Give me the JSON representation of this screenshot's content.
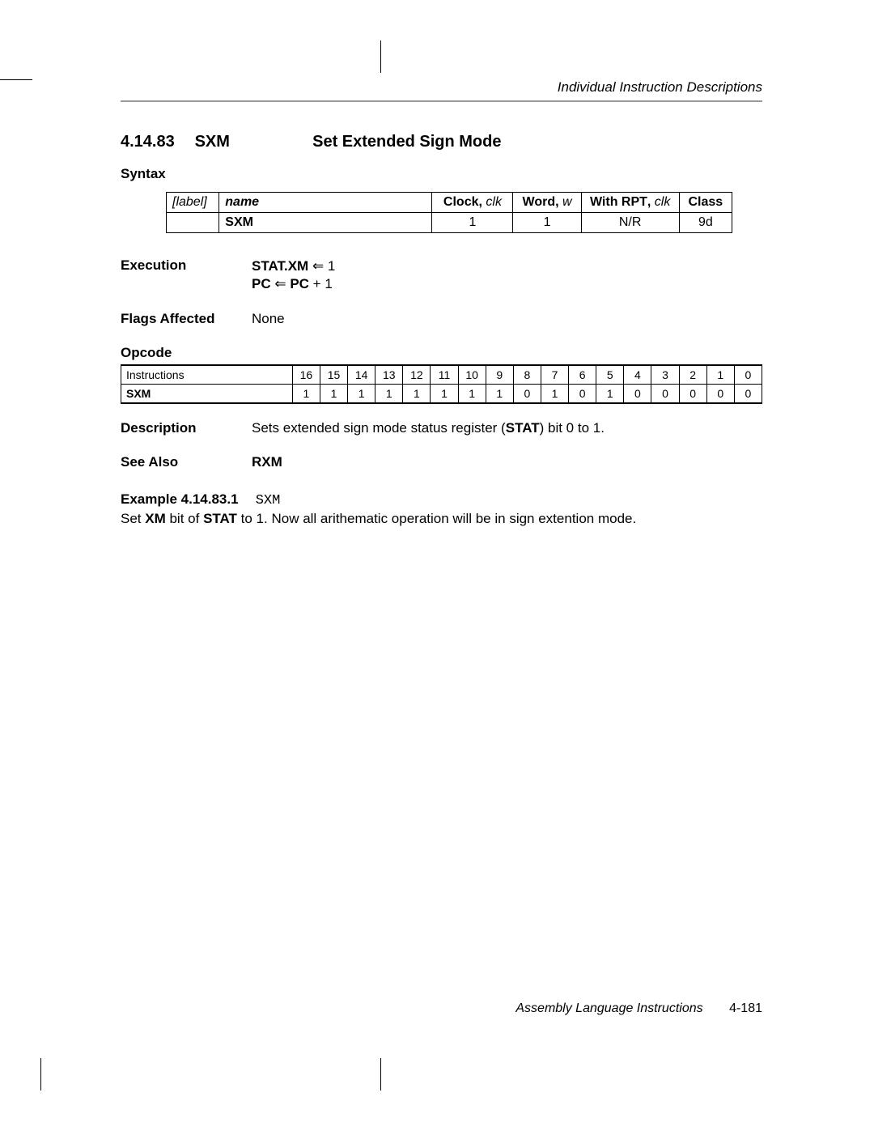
{
  "running_head": "Individual Instruction Descriptions",
  "section": {
    "number": "4.14.83",
    "mnemonic": "SXM",
    "title": "Set Extended Sign Mode"
  },
  "syntax": {
    "label": "Syntax",
    "headers": {
      "label": "[label]",
      "name": "name",
      "clock": "Clock",
      "clock_it": "clk",
      "word": "Word",
      "word_it": "w",
      "rpt": "With RPT",
      "rpt_it": "clk",
      "class": "Class"
    },
    "row": {
      "label": "",
      "name": "SXM",
      "clock": "1",
      "word": "1",
      "rpt": "N/R",
      "class": "9d"
    }
  },
  "execution": {
    "label": "Execution",
    "line1_pre": "STAT.XM",
    "line1_post": " 1",
    "line2_a": "PC",
    "line2_b": " PC",
    "line2_c": " + 1",
    "arrow": "⇐"
  },
  "flags": {
    "label": "Flags Affected",
    "value": "None"
  },
  "opcode": {
    "label": "Opcode",
    "header_inst": "Instructions",
    "bits": [
      "16",
      "15",
      "14",
      "13",
      "12",
      "11",
      "10",
      "9",
      "8",
      "7",
      "6",
      "5",
      "4",
      "3",
      "2",
      "1",
      "0"
    ],
    "row_name": "SXM",
    "row_bits": [
      "1",
      "1",
      "1",
      "1",
      "1",
      "1",
      "1",
      "1",
      "0",
      "1",
      "0",
      "1",
      "0",
      "0",
      "0",
      "0",
      "0"
    ]
  },
  "description": {
    "label": "Description",
    "pre": "Sets extended sign mode status register (",
    "bold": "STAT",
    "post": ") bit 0 to 1."
  },
  "see_also": {
    "label": "See Also",
    "value": "RXM"
  },
  "example": {
    "label": "Example 4.14.83.1",
    "code": "SXM",
    "text_pre": "Set ",
    "b1": "XM",
    "text_mid1": " bit of ",
    "b2": "STAT",
    "text_post": " to 1. Now all arithematic operation will be in sign extention mode."
  },
  "footer": {
    "chapter": "Assembly Language Instructions",
    "page": "4-181"
  }
}
